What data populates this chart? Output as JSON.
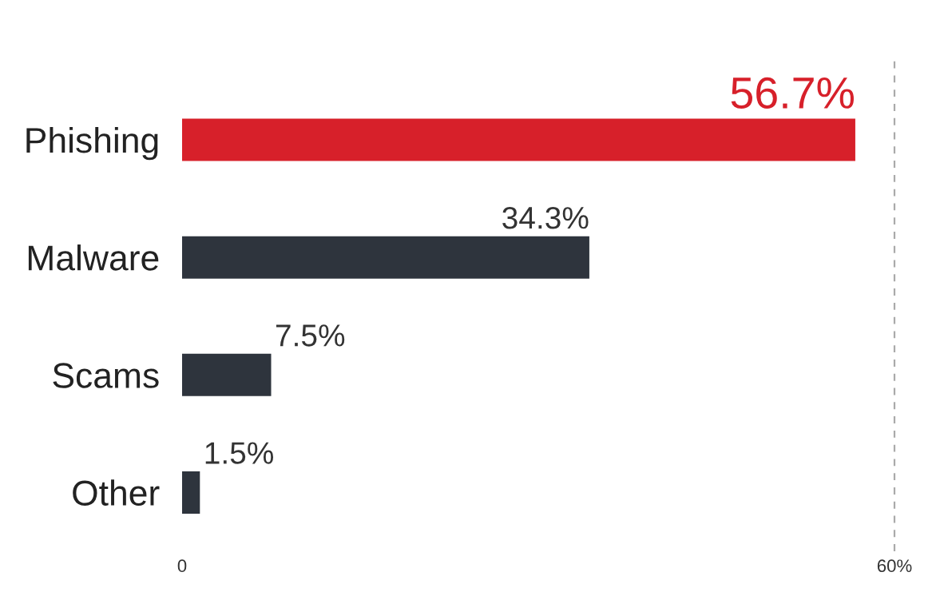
{
  "chart_data": {
    "type": "bar",
    "orientation": "horizontal",
    "categories": [
      "Phishing",
      "Malware",
      "Scams",
      "Other"
    ],
    "values": [
      56.7,
      34.3,
      7.5,
      1.5
    ],
    "colors": [
      "#d7202a",
      "#2e343d",
      "#2e343d",
      "#2e343d"
    ],
    "value_labels": [
      "56.7%",
      "34.3%",
      "7.5%",
      "1.5%"
    ],
    "xlim": [
      0,
      60
    ],
    "xticks": [
      0,
      {
        "value": 60,
        "label": "60%"
      }
    ],
    "ref_lines": [
      {
        "axis": "x",
        "value": 60,
        "color": "#aaaaaa",
        "line_style": "dashed"
      }
    ],
    "grid": false,
    "legend": false
  }
}
